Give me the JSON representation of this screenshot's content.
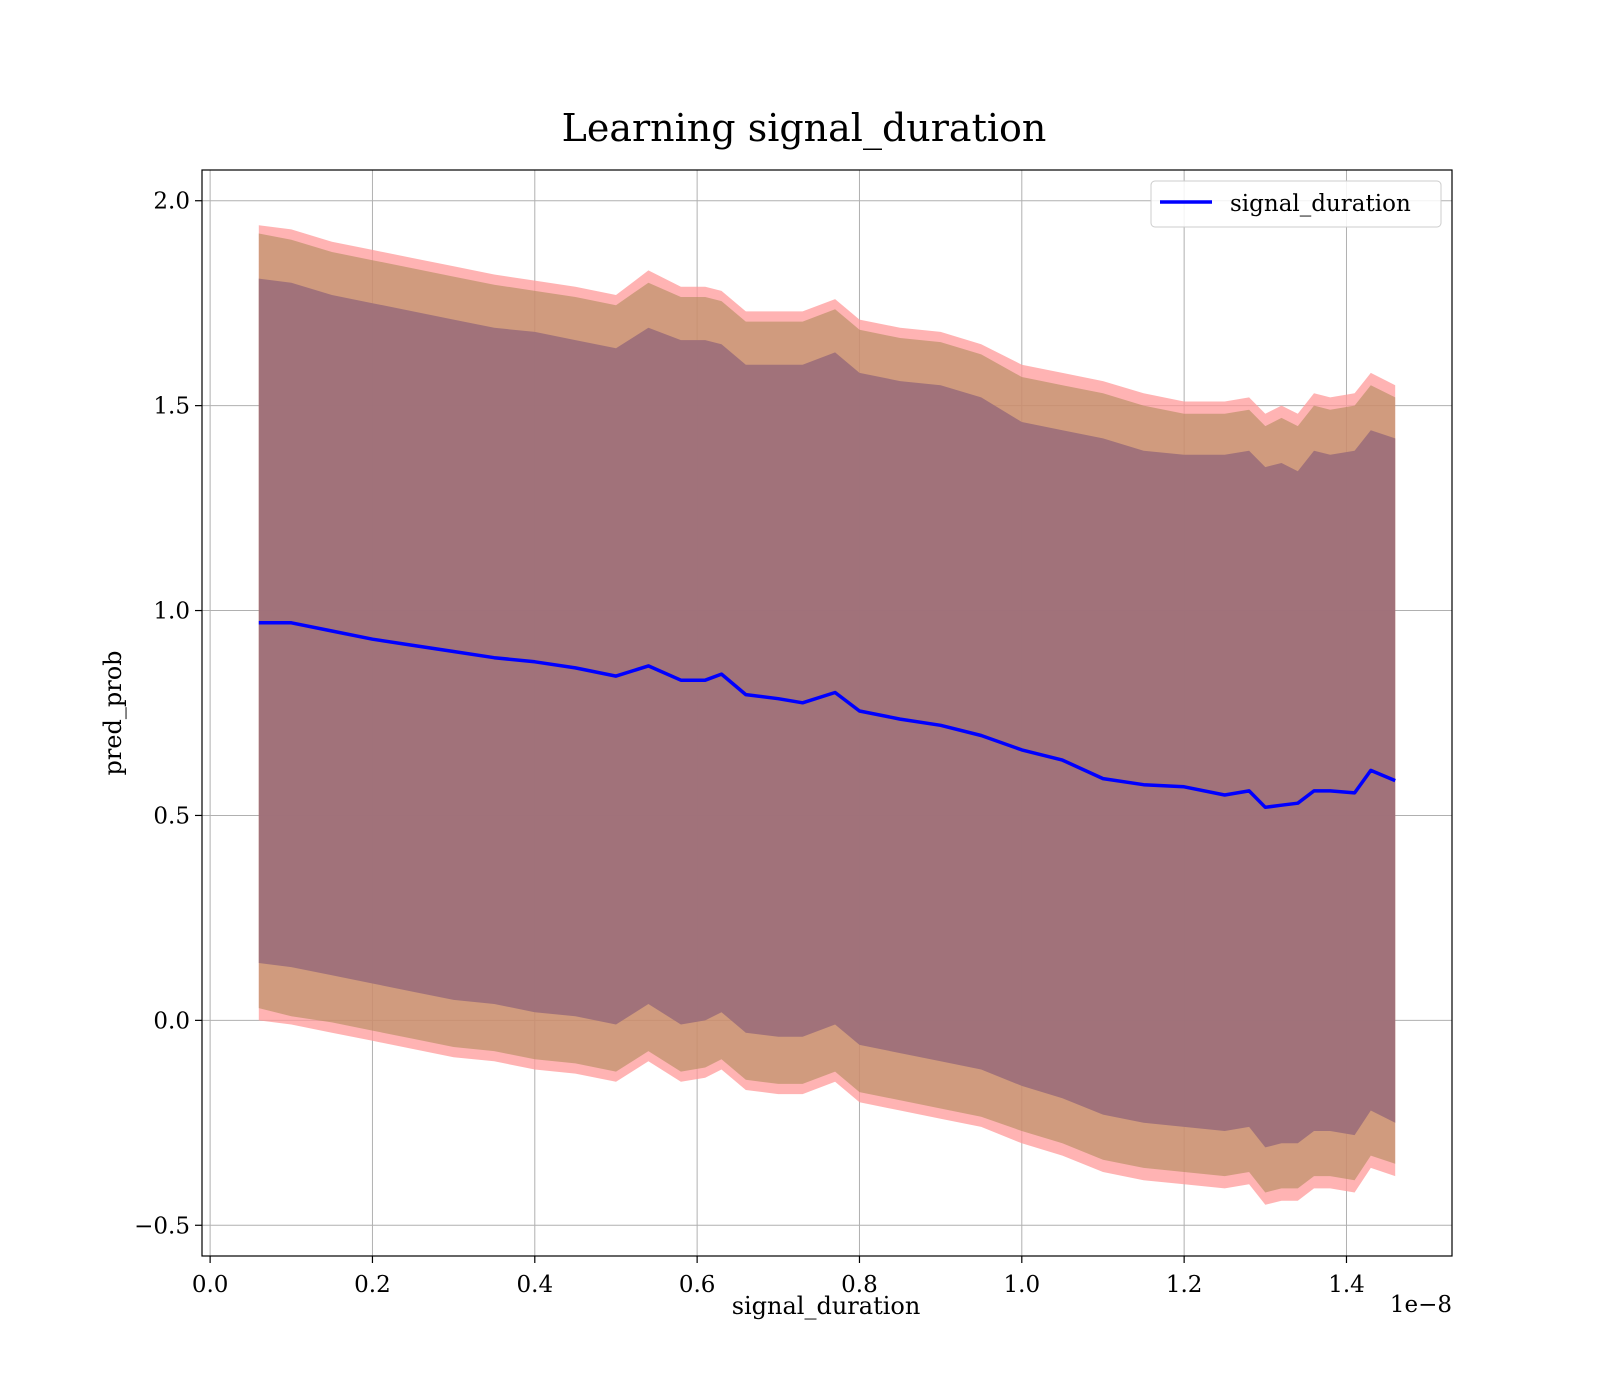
{
  "chart_data": {
    "type": "line",
    "title": "Learning signal_duration",
    "xlabel": "signal_duration",
    "ylabel": "pred_prob",
    "x_offset_label": "1e−8",
    "xlim": [
      -0.01,
      1.53
    ],
    "ylim": [
      -0.575,
      2.075
    ],
    "x_ticks": [
      0.0,
      0.2,
      0.4,
      0.6,
      0.8,
      1.0,
      1.2,
      1.4
    ],
    "x_tick_labels": [
      "0.0",
      "0.2",
      "0.4",
      "0.6",
      "0.8",
      "1.0",
      "1.2",
      "1.4"
    ],
    "y_ticks": [
      -0.5,
      0.0,
      0.5,
      1.0,
      1.5,
      2.0
    ],
    "y_tick_labels": [
      "−0.5",
      "0.0",
      "0.5",
      "1.0",
      "1.5",
      "2.0"
    ],
    "grid": true,
    "legend_position": "top-right",
    "colors": {
      "line": "#0000ff",
      "band_outer": "#ff9999",
      "band_middle": "#b08a5a",
      "band_inner": "#9e707a"
    },
    "x": [
      0.06,
      0.1,
      0.15,
      0.2,
      0.25,
      0.3,
      0.35,
      0.4,
      0.45,
      0.5,
      0.54,
      0.58,
      0.61,
      0.63,
      0.66,
      0.7,
      0.73,
      0.77,
      0.8,
      0.85,
      0.9,
      0.95,
      1.0,
      1.05,
      1.1,
      1.15,
      1.2,
      1.25,
      1.28,
      1.3,
      1.32,
      1.34,
      1.36,
      1.38,
      1.41,
      1.43,
      1.46
    ],
    "series": [
      {
        "name": "signal_duration",
        "values": [
          0.97,
          0.97,
          0.95,
          0.93,
          0.915,
          0.9,
          0.885,
          0.875,
          0.86,
          0.84,
          0.865,
          0.83,
          0.83,
          0.845,
          0.795,
          0.785,
          0.775,
          0.8,
          0.755,
          0.735,
          0.72,
          0.695,
          0.66,
          0.635,
          0.59,
          0.575,
          0.57,
          0.55,
          0.56,
          0.52,
          0.525,
          0.53,
          0.56,
          0.56,
          0.555,
          0.61,
          0.585
        ]
      }
    ],
    "bands": [
      {
        "role": "outer",
        "upper": [
          1.94,
          1.93,
          1.9,
          1.88,
          1.86,
          1.84,
          1.82,
          1.805,
          1.79,
          1.77,
          1.83,
          1.79,
          1.79,
          1.78,
          1.73,
          1.73,
          1.73,
          1.76,
          1.71,
          1.69,
          1.68,
          1.65,
          1.6,
          1.58,
          1.56,
          1.53,
          1.51,
          1.51,
          1.52,
          1.48,
          1.5,
          1.48,
          1.53,
          1.52,
          1.53,
          1.58,
          1.55
        ],
        "lower": [
          0.0,
          -0.01,
          -0.03,
          -0.05,
          -0.07,
          -0.09,
          -0.1,
          -0.12,
          -0.13,
          -0.15,
          -0.1,
          -0.15,
          -0.14,
          -0.12,
          -0.17,
          -0.18,
          -0.18,
          -0.15,
          -0.2,
          -0.22,
          -0.24,
          -0.26,
          -0.3,
          -0.33,
          -0.37,
          -0.39,
          -0.4,
          -0.41,
          -0.4,
          -0.45,
          -0.44,
          -0.44,
          -0.41,
          -0.41,
          -0.42,
          -0.36,
          -0.38
        ]
      },
      {
        "role": "middle",
        "upper": [
          1.92,
          1.905,
          1.875,
          1.855,
          1.835,
          1.815,
          1.795,
          1.78,
          1.765,
          1.745,
          1.8,
          1.765,
          1.765,
          1.755,
          1.705,
          1.705,
          1.705,
          1.735,
          1.685,
          1.665,
          1.655,
          1.625,
          1.57,
          1.55,
          1.53,
          1.5,
          1.48,
          1.48,
          1.49,
          1.45,
          1.47,
          1.45,
          1.5,
          1.49,
          1.5,
          1.55,
          1.52
        ],
        "lower": [
          0.03,
          0.01,
          -0.005,
          -0.025,
          -0.045,
          -0.065,
          -0.075,
          -0.095,
          -0.105,
          -0.125,
          -0.075,
          -0.125,
          -0.115,
          -0.095,
          -0.145,
          -0.155,
          -0.155,
          -0.125,
          -0.175,
          -0.195,
          -0.215,
          -0.235,
          -0.27,
          -0.3,
          -0.34,
          -0.36,
          -0.37,
          -0.38,
          -0.37,
          -0.42,
          -0.41,
          -0.41,
          -0.38,
          -0.38,
          -0.39,
          -0.33,
          -0.35
        ]
      },
      {
        "role": "inner",
        "upper": [
          1.81,
          1.8,
          1.77,
          1.75,
          1.73,
          1.71,
          1.69,
          1.68,
          1.66,
          1.64,
          1.69,
          1.66,
          1.66,
          1.65,
          1.6,
          1.6,
          1.6,
          1.63,
          1.58,
          1.56,
          1.55,
          1.52,
          1.46,
          1.44,
          1.42,
          1.39,
          1.38,
          1.38,
          1.39,
          1.35,
          1.36,
          1.34,
          1.39,
          1.38,
          1.39,
          1.44,
          1.42
        ],
        "lower": [
          0.14,
          0.13,
          0.11,
          0.09,
          0.07,
          0.05,
          0.04,
          0.02,
          0.01,
          -0.01,
          0.04,
          -0.01,
          0.0,
          0.02,
          -0.03,
          -0.04,
          -0.04,
          -0.01,
          -0.06,
          -0.08,
          -0.1,
          -0.12,
          -0.16,
          -0.19,
          -0.23,
          -0.25,
          -0.26,
          -0.27,
          -0.26,
          -0.31,
          -0.3,
          -0.3,
          -0.27,
          -0.27,
          -0.28,
          -0.22,
          -0.25
        ]
      }
    ]
  }
}
